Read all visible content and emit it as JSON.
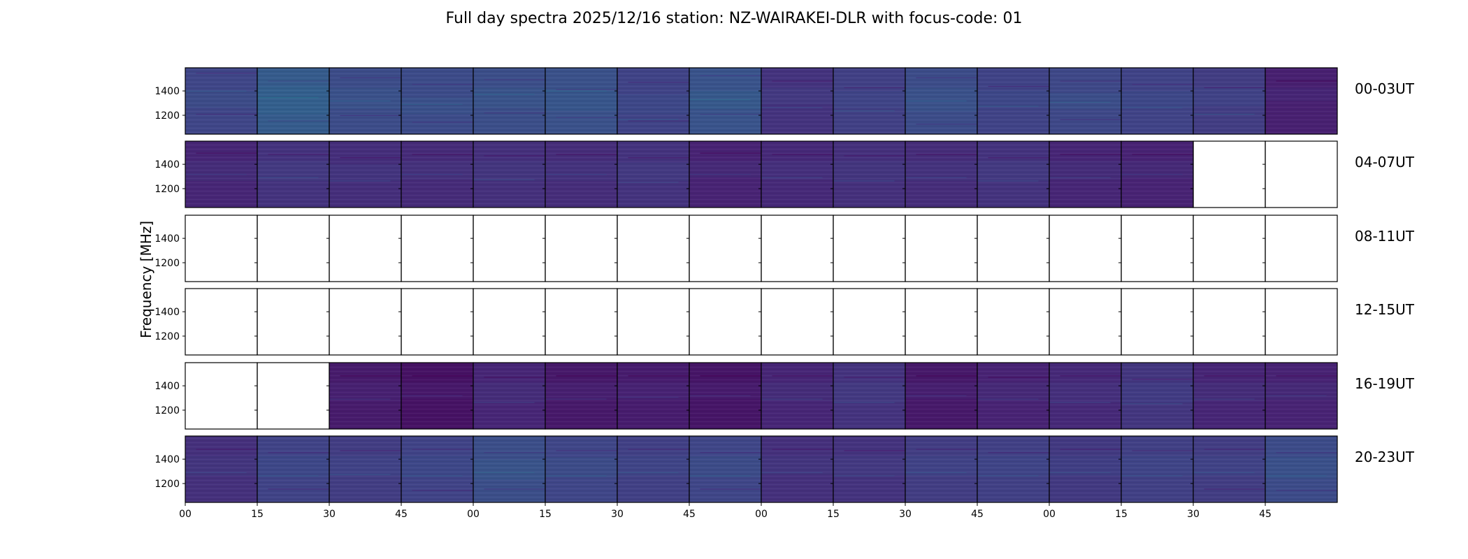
{
  "chart_data": {
    "type": "heatmap",
    "title": "Full day spectra 2025/12/16 station: NZ-WAIRAKEI-DLR with focus-code: 01",
    "ylabel": "Frequency [MHz]",
    "xlabel": "",
    "ytick_labels": [
      "1400",
      "1200"
    ],
    "ylim_mhz": [
      1045,
      1590
    ],
    "xtick_labels": [
      "00",
      "15",
      "30",
      "45",
      "00",
      "15",
      "30",
      "45",
      "00",
      "15",
      "30",
      "45",
      "00",
      "15",
      "30",
      "45"
    ],
    "minutes_per_panel": 15,
    "panels_per_row": 16,
    "rows": [
      {
        "label": "00-03UT",
        "panels": [
          {
            "level": 0.42,
            "lines": [
              0.08,
              0.35,
              0.7
            ],
            "band": [
              0.35,
              0.6
            ]
          },
          {
            "level": 0.58,
            "lines": [
              0.2,
              0.45,
              0.8
            ],
            "band": [
              0.28,
              0.7
            ]
          },
          {
            "level": 0.47,
            "lines": [
              0.15,
              0.5,
              0.72
            ],
            "band": [
              0.3,
              0.62
            ]
          },
          {
            "level": 0.46,
            "lines": [
              0.25,
              0.55,
              0.82
            ],
            "band": [
              0.45,
              0.7
            ]
          },
          {
            "level": 0.48,
            "lines": [
              0.18,
              0.4,
              0.68
            ],
            "band": [
              0.3,
              0.6
            ]
          },
          {
            "level": 0.5,
            "lines": [
              0.33,
              0.35,
              0.75
            ],
            "band": [
              0.32,
              0.65
            ]
          },
          {
            "level": 0.4,
            "lines": [
              0.22,
              0.78,
              0.8
            ],
            "band": [
              0.4,
              0.7
            ]
          },
          {
            "level": 0.52,
            "lines": [
              0.12,
              0.48,
              0.7
            ],
            "band": [
              0.35,
              0.62
            ]
          },
          {
            "level": 0.3,
            "lines": [
              0.2,
              0.6
            ],
            "band": [
              0.3,
              0.55
            ]
          },
          {
            "level": 0.38,
            "lines": [
              0.3,
              0.65
            ],
            "band": [
              0.35,
              0.6
            ]
          },
          {
            "level": 0.47,
            "lines": [
              0.15,
              0.5,
              0.85
            ],
            "band": [
              0.3,
              0.66
            ]
          },
          {
            "level": 0.4,
            "lines": [
              0.28,
              0.58
            ],
            "band": [
              0.34,
              0.6
            ]
          },
          {
            "level": 0.44,
            "lines": [
              0.2,
              0.52,
              0.78
            ],
            "band": [
              0.38,
              0.62
            ]
          },
          {
            "level": 0.4,
            "lines": [
              0.25,
              0.6
            ],
            "band": [
              0.35,
              0.6
            ]
          },
          {
            "level": 0.36,
            "lines": [
              0.3,
              0.7
            ],
            "band": [
              0.3,
              0.58
            ]
          },
          {
            "level": 0.18,
            "lines": [
              0.2
            ],
            "band": [
              0.3,
              0.5
            ]
          }
        ]
      },
      {
        "label": "04-07UT",
        "panels": [
          {
            "level": 0.22,
            "lines": [
              0.18,
              0.5
            ],
            "band": [
              0.3,
              0.6
            ]
          },
          {
            "level": 0.3,
            "lines": [
              0.2,
              0.55
            ],
            "band": [
              0.3,
              0.6
            ]
          },
          {
            "level": 0.27,
            "lines": [
              0.25,
              0.6
            ],
            "band": [
              0.35,
              0.6
            ]
          },
          {
            "level": 0.25,
            "lines": [
              0.2,
              0.5
            ],
            "band": [
              0.3,
              0.58
            ]
          },
          {
            "level": 0.28,
            "lines": [
              0.22,
              0.58
            ],
            "band": [
              0.3,
              0.6
            ]
          },
          {
            "level": 0.26,
            "lines": [
              0.2,
              0.5
            ],
            "band": [
              0.3,
              0.6
            ]
          },
          {
            "level": 0.3,
            "lines": [
              0.25,
              0.62
            ],
            "band": [
              0.32,
              0.6
            ]
          },
          {
            "level": 0.2,
            "lines": [
              0.18,
              0.5
            ],
            "band": [
              0.3,
              0.55
            ]
          },
          {
            "level": 0.24,
            "lines": [
              0.2,
              0.55
            ],
            "band": [
              0.3,
              0.58
            ]
          },
          {
            "level": 0.28,
            "lines": [
              0.22,
              0.6
            ],
            "band": [
              0.3,
              0.6
            ]
          },
          {
            "level": 0.26,
            "lines": [
              0.2,
              0.55
            ],
            "band": [
              0.3,
              0.6
            ]
          },
          {
            "level": 0.3,
            "lines": [
              0.25,
              0.6
            ],
            "band": [
              0.3,
              0.6
            ]
          },
          {
            "level": 0.22,
            "lines": [
              0.2,
              0.55
            ],
            "band": [
              0.3,
              0.58
            ]
          },
          {
            "level": 0.2,
            "lines": [
              0.2,
              0.5
            ],
            "band": [
              0.3,
              0.56
            ]
          },
          null,
          null
        ]
      },
      {
        "label": "08-11UT",
        "panels": [
          null,
          null,
          null,
          null,
          null,
          null,
          null,
          null,
          null,
          null,
          null,
          null,
          null,
          null,
          null,
          null
        ]
      },
      {
        "label": "12-15UT",
        "panels": [
          null,
          null,
          null,
          null,
          null,
          null,
          null,
          null,
          null,
          null,
          null,
          null,
          null,
          null,
          null,
          null
        ]
      },
      {
        "label": "16-19UT",
        "panels": [
          null,
          null,
          {
            "level": 0.15,
            "lines": [
              0.2,
              0.55
            ],
            "band": [
              0.3,
              0.58
            ]
          },
          {
            "level": 0.1,
            "lines": [
              0.2,
              0.5
            ],
            "band": [
              0.3,
              0.55
            ]
          },
          {
            "level": 0.22,
            "lines": [
              0.22,
              0.6
            ],
            "band": [
              0.3,
              0.6
            ]
          },
          {
            "level": 0.14,
            "lines": [
              0.2,
              0.55
            ],
            "band": [
              0.3,
              0.56
            ]
          },
          {
            "level": 0.16,
            "lines": [
              0.2,
              0.52
            ],
            "band": [
              0.3,
              0.56
            ]
          },
          {
            "level": 0.12,
            "lines": [
              0.2,
              0.5
            ],
            "band": [
              0.3,
              0.55
            ]
          },
          {
            "level": 0.22,
            "lines": [
              0.2,
              0.55
            ],
            "band": [
              0.3,
              0.58
            ]
          },
          {
            "level": 0.3,
            "lines": [
              0.22,
              0.6
            ],
            "band": [
              0.3,
              0.6
            ]
          },
          {
            "level": 0.14,
            "lines": [
              0.2,
              0.5
            ],
            "band": [
              0.3,
              0.55
            ]
          },
          {
            "level": 0.2,
            "lines": [
              0.22,
              0.55
            ],
            "band": [
              0.3,
              0.58
            ]
          },
          {
            "level": 0.24,
            "lines": [
              0.2,
              0.6
            ],
            "band": [
              0.3,
              0.6
            ]
          },
          {
            "level": 0.32,
            "lines": [
              0.25,
              0.62
            ],
            "band": [
              0.3,
              0.6
            ]
          },
          {
            "level": 0.22,
            "lines": [
              0.2,
              0.55
            ],
            "band": [
              0.3,
              0.58
            ]
          },
          {
            "level": 0.2,
            "lines": [
              0.2,
              0.5
            ],
            "band": [
              0.3,
              0.56
            ]
          }
        ]
      },
      {
        "label": "20-23UT",
        "panels": [
          {
            "level": 0.28,
            "lines": [
              0.2,
              0.55
            ],
            "band": [
              0.3,
              0.6
            ]
          },
          {
            "level": 0.4,
            "lines": [
              0.25,
              0.6,
              0.8
            ],
            "band": [
              0.3,
              0.62
            ]
          },
          {
            "level": 0.36,
            "lines": [
              0.22,
              0.58
            ],
            "band": [
              0.3,
              0.6
            ]
          },
          {
            "level": 0.4,
            "lines": [
              0.2,
              0.6,
              0.82
            ],
            "band": [
              0.3,
              0.62
            ]
          },
          {
            "level": 0.48,
            "lines": [
              0.25,
              0.55,
              0.8
            ],
            "band": [
              0.35,
              0.66
            ]
          },
          {
            "level": 0.42,
            "lines": [
              0.22,
              0.6
            ],
            "band": [
              0.32,
              0.62
            ]
          },
          {
            "level": 0.38,
            "lines": [
              0.2,
              0.55
            ],
            "band": [
              0.3,
              0.6
            ]
          },
          {
            "level": 0.42,
            "lines": [
              0.25,
              0.6,
              0.8
            ],
            "band": [
              0.3,
              0.62
            ]
          },
          {
            "level": 0.28,
            "lines": [
              0.2,
              0.55
            ],
            "band": [
              0.3,
              0.58
            ]
          },
          {
            "level": 0.3,
            "lines": [
              0.22,
              0.6
            ],
            "band": [
              0.3,
              0.6
            ]
          },
          {
            "level": 0.36,
            "lines": [
              0.2,
              0.55
            ],
            "band": [
              0.3,
              0.6
            ]
          },
          {
            "level": 0.38,
            "lines": [
              0.25,
              0.6
            ],
            "band": [
              0.3,
              0.6
            ]
          },
          {
            "level": 0.34,
            "lines": [
              0.2,
              0.55
            ],
            "band": [
              0.3,
              0.6
            ]
          },
          {
            "level": 0.38,
            "lines": [
              0.22,
              0.6
            ],
            "band": [
              0.3,
              0.6
            ]
          },
          {
            "level": 0.36,
            "lines": [
              0.2,
              0.55,
              0.8
            ],
            "band": [
              0.3,
              0.6
            ]
          },
          {
            "level": 0.46,
            "lines": [
              0.25,
              0.6,
              0.82
            ],
            "band": [
              0.32,
              0.64
            ]
          }
        ]
      }
    ]
  }
}
